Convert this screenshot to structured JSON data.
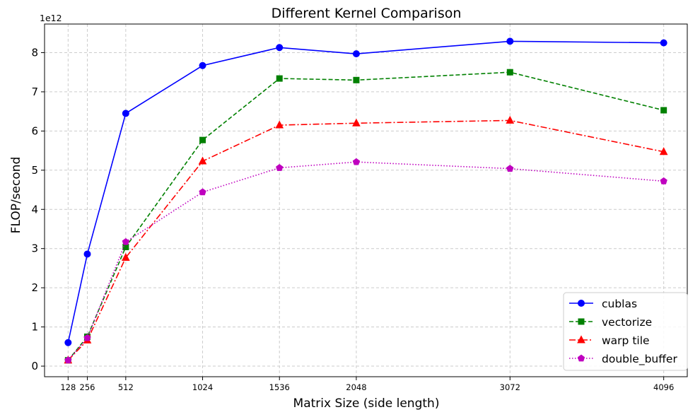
{
  "chart_data": {
    "type": "line",
    "title": "Different Kernel Comparison",
    "xlabel": "Matrix Size (side length)",
    "ylabel": "FLOP/second",
    "y_offset_label": "1e12",
    "x": [
      128,
      256,
      512,
      1024,
      1536,
      2048,
      3072,
      4096
    ],
    "x_tick_labels": [
      "128",
      "256",
      "512",
      "1024",
      "1536",
      "2048",
      "3072",
      "4096"
    ],
    "xlim": [
      -29,
      4253
    ],
    "ylim": [
      -0.27,
      8.73
    ],
    "y_ticks": [
      0,
      1,
      2,
      3,
      4,
      5,
      6,
      7,
      8
    ],
    "y_tick_labels": [
      "0",
      "1",
      "2",
      "3",
      "4",
      "5",
      "6",
      "7",
      "8"
    ],
    "grid": true,
    "legend_position": "bottom-right",
    "series": [
      {
        "name": "cublas",
        "color": "#0000ff",
        "dash": "solid",
        "marker": "circle",
        "values": [
          0.6,
          2.86,
          6.45,
          7.67,
          8.13,
          7.97,
          8.29,
          8.25
        ]
      },
      {
        "name": "vectorize",
        "color": "#008000",
        "dash": "dashed",
        "marker": "square",
        "values": [
          0.15,
          0.75,
          3.04,
          5.77,
          7.34,
          7.3,
          7.5,
          6.53
        ]
      },
      {
        "name": "warp tile",
        "color": "#ff0000",
        "dash": "dashdot",
        "marker": "triangle",
        "values": [
          0.15,
          0.66,
          2.77,
          5.23,
          6.15,
          6.2,
          6.27,
          5.47
        ]
      },
      {
        "name": "double_buffer",
        "color": "#bf00bf",
        "dash": "dotted",
        "marker": "pentagon",
        "values": [
          0.15,
          0.72,
          3.17,
          4.44,
          5.06,
          5.21,
          5.04,
          4.72
        ]
      }
    ]
  }
}
